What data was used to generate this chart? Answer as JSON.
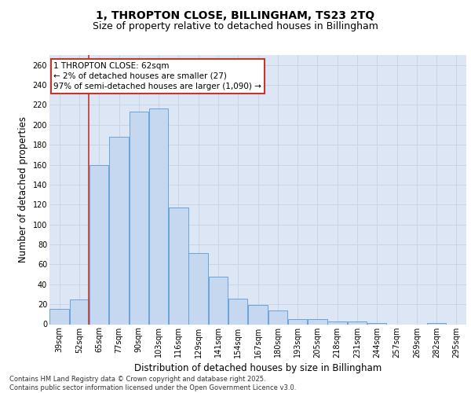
{
  "title_line1": "1, THROPTON CLOSE, BILLINGHAM, TS23 2TQ",
  "title_line2": "Size of property relative to detached houses in Billingham",
  "xlabel": "Distribution of detached houses by size in Billingham",
  "ylabel": "Number of detached properties",
  "categories": [
    "39sqm",
    "52sqm",
    "65sqm",
    "77sqm",
    "90sqm",
    "103sqm",
    "116sqm",
    "129sqm",
    "141sqm",
    "154sqm",
    "167sqm",
    "180sqm",
    "193sqm",
    "205sqm",
    "218sqm",
    "231sqm",
    "244sqm",
    "257sqm",
    "269sqm",
    "282sqm",
    "295sqm"
  ],
  "values": [
    15,
    25,
    160,
    188,
    213,
    216,
    117,
    71,
    48,
    26,
    19,
    14,
    5,
    5,
    3,
    3,
    1,
    0,
    0,
    1,
    0
  ],
  "bar_color": "#c5d8f0",
  "bar_edge_color": "#5b9bd5",
  "vline_color": "#c0392b",
  "vline_x": 1.475,
  "annotation_text": "1 THROPTON CLOSE: 62sqm\n← 2% of detached houses are smaller (27)\n97% of semi-detached houses are larger (1,090) →",
  "annotation_box_color": "#ffffff",
  "annotation_box_edge": "#c0392b",
  "ylim": [
    0,
    270
  ],
  "yticks": [
    0,
    20,
    40,
    60,
    80,
    100,
    120,
    140,
    160,
    180,
    200,
    220,
    240,
    260
  ],
  "grid_color": "#c8d4e8",
  "bg_color": "#dce6f5",
  "footer": "Contains HM Land Registry data © Crown copyright and database right 2025.\nContains public sector information licensed under the Open Government Licence v3.0.",
  "title_fontsize": 10,
  "subtitle_fontsize": 9,
  "axis_label_fontsize": 8.5,
  "tick_fontsize": 7,
  "footer_fontsize": 6,
  "annot_fontsize": 7.5
}
